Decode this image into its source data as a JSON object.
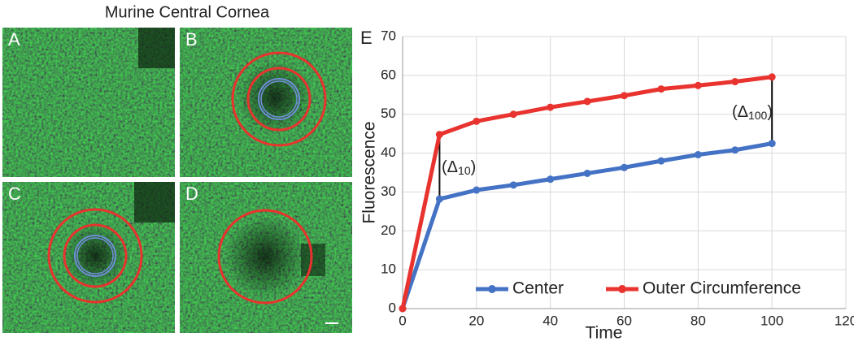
{
  "title": "Murine Central Cornea",
  "panels": [
    "A",
    "B",
    "C",
    "D"
  ],
  "chart_data": {
    "type": "line",
    "panel_label": "E",
    "xlabel": "Time",
    "ylabel": "Fluorescence",
    "x": [
      0,
      10,
      20,
      30,
      40,
      50,
      60,
      70,
      80,
      90,
      100
    ],
    "series": [
      {
        "name": "Center",
        "color": "#4472c4",
        "values": [
          0,
          28.2,
          30.5,
          31.8,
          33.3,
          34.8,
          36.3,
          38,
          39.6,
          40.8,
          42.5
        ]
      },
      {
        "name": "Outer Circumference",
        "color": "#e8332e",
        "values": [
          0,
          44.8,
          48.2,
          50,
          51.8,
          53.3,
          54.8,
          56.5,
          57.4,
          58.4,
          59.6
        ]
      }
    ],
    "annotations": [
      {
        "prefix": "(Δ",
        "subscript": "10",
        "suffix": ")"
      },
      {
        "prefix": "(Δ",
        "subscript": "100",
        "suffix": ")"
      }
    ],
    "xlim": [
      0,
      120
    ],
    "xticks": [
      0,
      20,
      40,
      60,
      80,
      100,
      120
    ],
    "ylim": [
      0,
      70
    ],
    "yticks": [
      0,
      10,
      20,
      30,
      40,
      50,
      60,
      70
    ],
    "grid": true,
    "legend": "bottom"
  }
}
